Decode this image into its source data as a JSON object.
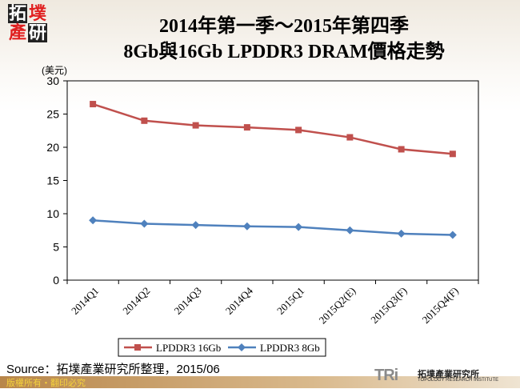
{
  "logo": {
    "chars": [
      "拓",
      "墣",
      "產",
      "研"
    ]
  },
  "title_line1": "2014年第一季～2015年第四季",
  "title_line2": "8Gb與16Gb LPDDR3 DRAM價格走勢",
  "source": "Source：拓墣產業研究所整理，2015/06",
  "footer": "版權所有‧翻印必究",
  "brand": {
    "mark": "TRi",
    "name": "拓墣產業研究所",
    "sub": "TOPOLOGY RESEARCH INSTITUTE"
  },
  "chart_data": {
    "type": "line",
    "ylabel": "(美元)",
    "ylim": [
      0,
      30
    ],
    "yticks": [
      0,
      5,
      10,
      15,
      20,
      25,
      30
    ],
    "categories": [
      "2014Q1",
      "2014Q2",
      "2014Q3",
      "2014Q4",
      "2015Q1",
      "2015Q2(E)",
      "2015Q3(F)",
      "2015Q4(F)"
    ],
    "legend_placement": "bottom",
    "series": [
      {
        "name": "LPDDR3 16Gb",
        "color": "#c0504d",
        "marker": "square",
        "values": [
          26.5,
          24,
          23.3,
          23,
          22.6,
          21.5,
          19.7,
          19
        ]
      },
      {
        "name": "LPDDR3 8Gb",
        "color": "#4f81bd",
        "marker": "diamond",
        "values": [
          9,
          8.5,
          8.3,
          8.1,
          8,
          7.5,
          7,
          6.8
        ]
      }
    ]
  }
}
